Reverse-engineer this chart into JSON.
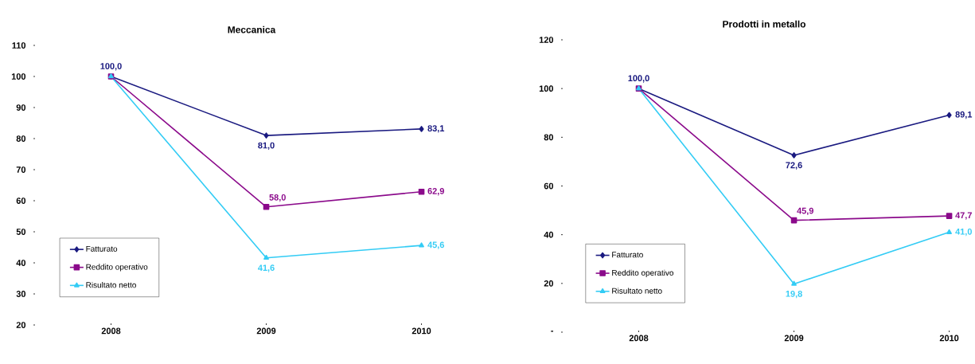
{
  "chart_data": [
    {
      "type": "line",
      "title": "Meccanica",
      "categories": [
        "2008",
        "2009",
        "2010"
      ],
      "ylim": [
        20,
        110
      ],
      "yticks": [
        20,
        30,
        40,
        50,
        60,
        70,
        80,
        90,
        100,
        110
      ],
      "legend": "bottom left",
      "grid": false,
      "data_labels": true,
      "series": [
        {
          "name": "Fatturato",
          "color": "#1a1a80",
          "marker": "diamond",
          "values": [
            100.0,
            81.0,
            83.1
          ],
          "value_labels": [
            "100,0",
            "81,0",
            "83,1"
          ]
        },
        {
          "name": "Reddito operativo",
          "color": "#8b0a8b",
          "marker": "square",
          "values": [
            100.0,
            58.0,
            62.9
          ],
          "value_labels": [
            null,
            "58,0",
            "62,9"
          ]
        },
        {
          "name": "Risultato netto",
          "color": "#33ccf5",
          "marker": "triangle",
          "values": [
            100.0,
            41.6,
            45.6
          ],
          "value_labels": [
            null,
            "41,6",
            "45,6"
          ]
        }
      ]
    },
    {
      "type": "line",
      "title": "Prodotti in metallo",
      "categories": [
        "2008",
        "2009",
        "2010"
      ],
      "ylim": [
        0,
        120
      ],
      "yticks": [
        {
          "value": 0,
          "label": "-"
        },
        20,
        40,
        60,
        80,
        100,
        120
      ],
      "legend": "bottom left",
      "grid": false,
      "data_labels": true,
      "series": [
        {
          "name": "Fatturato",
          "color": "#1a1a80",
          "marker": "diamond",
          "values": [
            100.0,
            72.6,
            89.1
          ],
          "value_labels": [
            "100,0",
            "72,6",
            "89,1"
          ]
        },
        {
          "name": "Reddito operativo",
          "color": "#8b0a8b",
          "marker": "square",
          "values": [
            100.0,
            45.9,
            47.7
          ],
          "value_labels": [
            null,
            "45,9",
            "47,7"
          ]
        },
        {
          "name": "Risultato netto",
          "color": "#33ccf5",
          "marker": "triangle",
          "values": [
            100.0,
            19.8,
            41.0
          ],
          "value_labels": [
            null,
            "19,8",
            "41,0"
          ]
        }
      ]
    }
  ]
}
